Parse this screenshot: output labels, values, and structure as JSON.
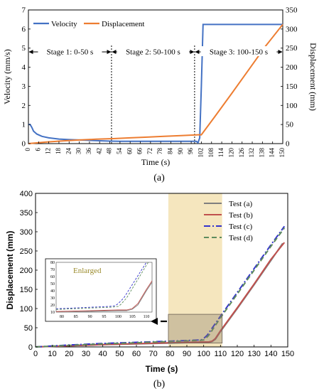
{
  "chart_data": [
    {
      "type": "line",
      "caption": "(a)",
      "xlabel": "Time (s)",
      "ylabel": "Velocity (mm/s)",
      "y2label": "Displacement (mm)",
      "xlim": [
        0,
        150
      ],
      "ylim": [
        0,
        7
      ],
      "y2lim": [
        0,
        350
      ],
      "xticks": [
        0,
        6,
        12,
        18,
        24,
        30,
        36,
        42,
        48,
        54,
        60,
        66,
        72,
        78,
        84,
        90,
        96,
        102,
        108,
        114,
        120,
        126,
        132,
        138,
        144,
        150
      ],
      "yticks": [
        0,
        1,
        2,
        3,
        4,
        5,
        6,
        7
      ],
      "y2ticks": [
        0,
        50,
        100,
        150,
        200,
        250,
        300,
        350
      ],
      "legend_position": "top-left",
      "series": [
        {
          "name": "Velocity",
          "axis": "left",
          "color": "#4472c4",
          "x": [
            0,
            1,
            2,
            3,
            5,
            8,
            12,
            18,
            24,
            30,
            36,
            42,
            48,
            54,
            60,
            70,
            80,
            90,
            97,
            99,
            100,
            101,
            102,
            103,
            104,
            110,
            120,
            130,
            140,
            150
          ],
          "y": [
            1.0,
            1.0,
            0.85,
            0.65,
            0.5,
            0.38,
            0.3,
            0.24,
            0.21,
            0.19,
            0.17,
            0.15,
            0.13,
            0.12,
            0.12,
            0.12,
            0.12,
            0.12,
            0.12,
            0.12,
            0.05,
            0.3,
            3.0,
            6.24,
            6.24,
            6.24,
            6.24,
            6.24,
            6.24,
            6.24
          ]
        },
        {
          "name": "Displacement",
          "axis": "right",
          "color": "#ed7d31",
          "x": [
            0,
            10,
            20,
            30,
            40,
            50,
            60,
            70,
            80,
            90,
            100,
            102,
            110,
            120,
            130,
            140,
            150
          ],
          "y": [
            0,
            4,
            7,
            9.5,
            11.5,
            13,
            15,
            17,
            19,
            21,
            23,
            23,
            71,
            132,
            194,
            256,
            312
          ]
        }
      ],
      "stage_lines": [
        49,
        98
      ],
      "annotations": [
        {
          "text": "Stage 1: 0-50 s",
          "from": 0,
          "to": 49
        },
        {
          "text": "Stage 2: 50-100 s",
          "from": 49,
          "to": 98
        },
        {
          "text": "Stage 3: 100-150 s",
          "from": 98,
          "to": 150
        }
      ]
    },
    {
      "type": "line",
      "caption": "(b)",
      "xlabel": "Time (s)",
      "ylabel": "Displacement (mm)",
      "xlim": [
        0,
        150
      ],
      "ylim": [
        0,
        400
      ],
      "xticks": [
        0,
        10,
        20,
        30,
        40,
        50,
        60,
        70,
        80,
        90,
        100,
        110,
        120,
        130,
        140,
        150
      ],
      "yticks": [
        0,
        50,
        100,
        150,
        200,
        250,
        300,
        350,
        400
      ],
      "legend_position": "top-right",
      "highlight_band_x": [
        79,
        111
      ],
      "highlight_box": {
        "x": [
          79,
          111
        ],
        "y": [
          10,
          85
        ]
      },
      "series": [
        {
          "name": "Test (a)",
          "color": "#7f7f7f",
          "style": "solid",
          "x": [
            0,
            20,
            40,
            60,
            80,
            100,
            103,
            105,
            107,
            110,
            120,
            130,
            140,
            147
          ],
          "y": [
            0,
            3,
            6,
            8,
            10,
            12,
            12,
            14,
            20,
            40,
            100,
            162,
            225,
            270
          ]
        },
        {
          "name": "Test (b)",
          "color": "#c0504d",
          "style": "solid",
          "x": [
            0,
            20,
            40,
            60,
            80,
            100,
            103,
            105,
            107,
            110,
            120,
            130,
            140,
            148
          ],
          "y": [
            0,
            3,
            6,
            8.5,
            11,
            13,
            13,
            15,
            22,
            42,
            102,
            164,
            228,
            272
          ]
        },
        {
          "name": "Test (c)",
          "color": "#3333cc",
          "style": "dashdot",
          "x": [
            0,
            20,
            40,
            60,
            80,
            97,
            99,
            100,
            102,
            110,
            120,
            130,
            140,
            148
          ],
          "y": [
            0,
            5,
            9,
            12,
            15,
            18,
            19,
            22,
            30,
            80,
            142,
            204,
            266,
            314
          ]
        },
        {
          "name": "Test (d)",
          "color": "#5e8c5e",
          "style": "dashed",
          "x": [
            0,
            20,
            40,
            60,
            80,
            98,
            100,
            101,
            103,
            110,
            120,
            130,
            140,
            148
          ],
          "y": [
            0,
            4,
            8,
            11,
            14,
            17,
            18,
            21,
            30,
            76,
            138,
            200,
            262,
            310
          ]
        }
      ],
      "inset": {
        "label": "Enlarged",
        "label_color": "#9a8a2a",
        "xlim": [
          78,
          112
        ],
        "ylim": [
          10,
          80
        ],
        "xticks": [
          80,
          85,
          90,
          95,
          100,
          105,
          110
        ],
        "yticks": [
          10,
          20,
          30,
          40,
          50,
          60,
          70,
          80
        ]
      }
    }
  ]
}
